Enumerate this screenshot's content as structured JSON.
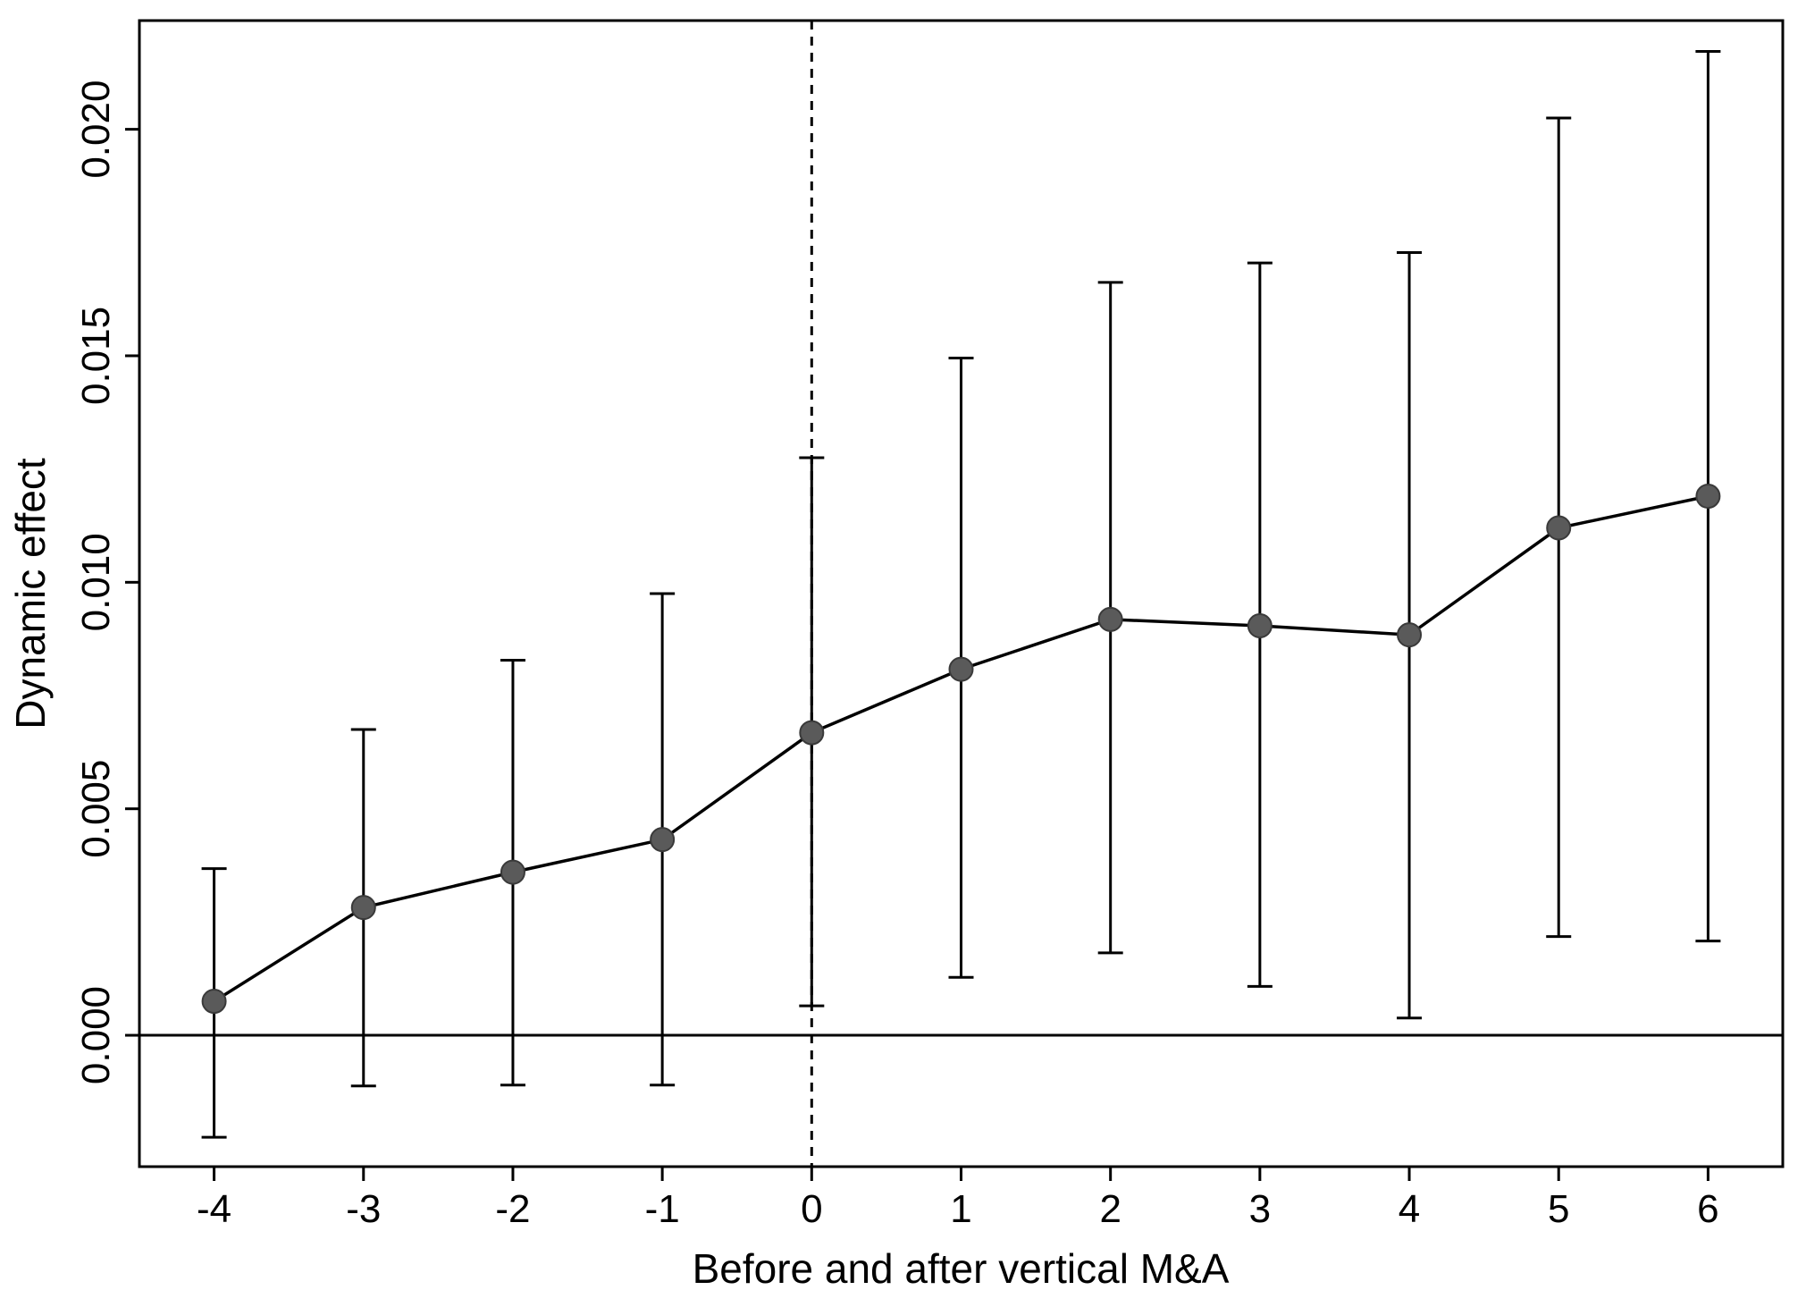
{
  "chart_data": {
    "type": "line",
    "x": [
      -4,
      -3,
      -2,
      -1,
      0,
      1,
      2,
      3,
      4,
      5,
      6
    ],
    "series": [
      {
        "values": [
          0.00075,
          0.00282,
          0.0036,
          0.00432,
          0.00668,
          0.00808,
          0.00918,
          0.00904,
          0.00884,
          0.0112,
          0.0119
        ],
        "ci_lower": [
          -0.00225,
          -0.00112,
          -0.0011,
          -0.0011,
          0.00065,
          0.00128,
          0.00182,
          0.00108,
          0.00038,
          0.00218,
          0.00208
        ],
        "ci_upper": [
          0.00368,
          0.00675,
          0.00828,
          0.00975,
          0.01275,
          0.01495,
          0.01662,
          0.01705,
          0.01728,
          0.02025,
          0.02172
        ]
      }
    ],
    "xlabel": "Before and after vertical M&A",
    "ylabel": "Dynamic effect",
    "xticks": [
      "-4",
      "-3",
      "-2",
      "-1",
      "0",
      "1",
      "2",
      "3",
      "4",
      "5",
      "6"
    ],
    "yticks": [
      "0.000",
      "0.005",
      "0.010",
      "0.015",
      "0.020"
    ],
    "ytick_values": [
      0,
      0.005,
      0.01,
      0.015,
      0.02
    ],
    "xlim": [
      -4.5,
      6.5
    ],
    "ylim": [
      -0.0029,
      0.0224
    ],
    "reference_lines": {
      "horizontal_y": 0,
      "vertical_dashed_x": 0
    },
    "grid": false,
    "colors": {
      "marker": "#5a5a5a",
      "line": "#000000"
    }
  }
}
